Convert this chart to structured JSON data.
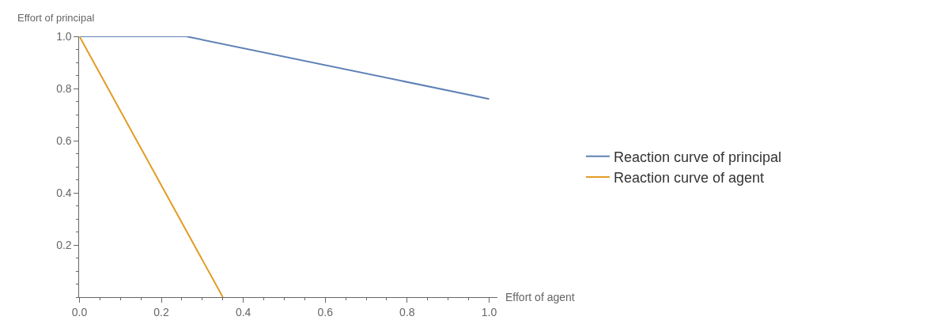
{
  "chart_data": {
    "type": "line",
    "xlabel": "Effort of agent",
    "ylabel": "Effort of principal",
    "xlim": [
      0,
      1.02
    ],
    "ylim": [
      0,
      1.0
    ],
    "xticks": [
      {
        "value": 0,
        "label": "0.0"
      },
      0.2,
      0.4,
      0.6,
      0.8,
      {
        "value": 1,
        "label": "1.0"
      }
    ],
    "yticks": [
      0.2,
      0.4,
      0.6,
      0.8,
      {
        "value": 1,
        "label": "1.0"
      }
    ],
    "grid": false,
    "legend": "right",
    "marker": "none",
    "line_style": "solid",
    "series": [
      {
        "name": "Reaction curve of principal",
        "color": "#5e81b5",
        "x": [
          0,
          0.26,
          1
        ],
        "values": [
          1,
          1,
          0.76
        ]
      },
      {
        "name": "Reaction curve of agent",
        "color": "#e19c24",
        "x": [
          0,
          0.35
        ],
        "values": [
          1,
          0
        ]
      }
    ]
  }
}
